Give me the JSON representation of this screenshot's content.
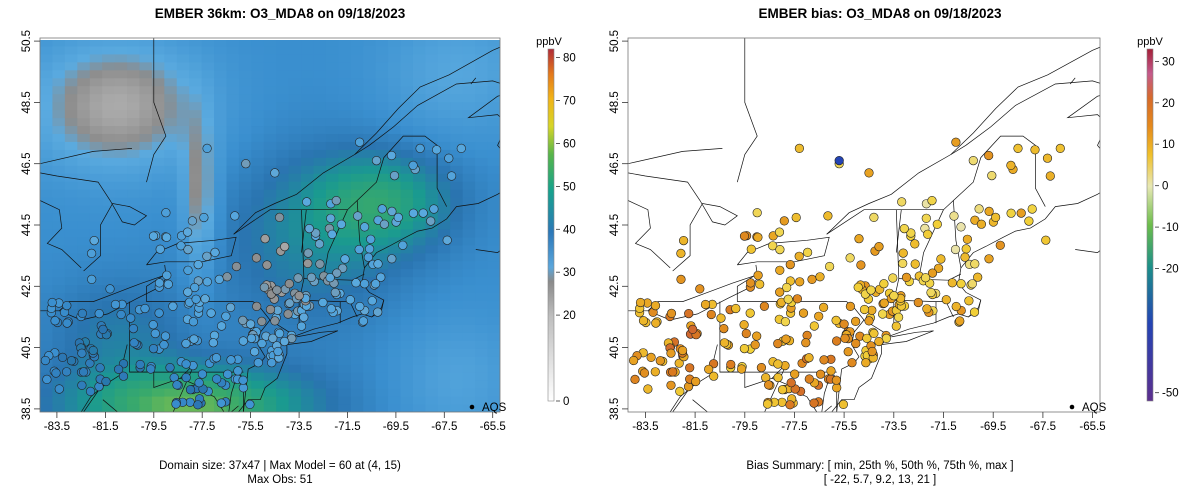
{
  "left": {
    "title": "EMBER 36km: O3_MDA8 on 09/18/2023",
    "colorbar_unit": "ppbV",
    "colorbar_ticks": [
      "0",
      "20",
      "30",
      "40",
      "50",
      "60",
      "70",
      "80"
    ],
    "legend_label": "AQS",
    "footer_line1": "Domain size: 37x47 | Max Model = 60 at (4, 15)",
    "footer_line2": "Max Obs: 51"
  },
  "right": {
    "title": "EMBER bias: O3_MDA8 on 09/18/2023",
    "colorbar_unit": "ppbV",
    "colorbar_ticks": [
      "-50",
      "-20",
      "-10",
      "0",
      "10",
      "20",
      "30"
    ],
    "legend_label": "AQS",
    "footer_line1": "Bias Summary: [ min, 25th %, 50th %, 75th %, max ]",
    "footer_line2": "[ -22,   5.7,   9.2,   13,   21 ]"
  },
  "x_ticks": [
    "-83.5",
    "-81.5",
    "-79.5",
    "-77.5",
    "-75.5",
    "-73.5",
    "-71.5",
    "-69.5",
    "-67.5",
    "-65.5"
  ],
  "y_ticks": [
    "38.5",
    "40.5",
    "42.5",
    "44.5",
    "46.5",
    "48.5",
    "50.5"
  ],
  "chart_data": [
    {
      "type": "heatmap",
      "title": "EMBER 36km: O3_MDA8 on 09/18/2023",
      "variable": "O3_MDA8",
      "units": "ppbV",
      "date": "09/18/2023",
      "domain_size": "37x47",
      "max_model": 60,
      "max_model_cell": [
        4,
        15
      ],
      "max_obs": 51,
      "xlim": [
        -84.2,
        -65.2
      ],
      "ylim": [
        38.4,
        50.6
      ],
      "colorbar_range": [
        0,
        82
      ],
      "observations": "AQS"
    },
    {
      "type": "scatter",
      "title": "EMBER bias: O3_MDA8 on 09/18/2023",
      "variable": "O3_MDA8 bias",
      "units": "ppbV",
      "date": "09/18/2023",
      "bias_summary": {
        "min": -22,
        "p25": 5.7,
        "p50": 9.2,
        "p75": 13,
        "max": 21
      },
      "xlim": [
        -84.2,
        -65.2
      ],
      "ylim": [
        38.4,
        50.6
      ],
      "colorbar_range": [
        -52,
        33
      ],
      "observations": "AQS"
    }
  ]
}
